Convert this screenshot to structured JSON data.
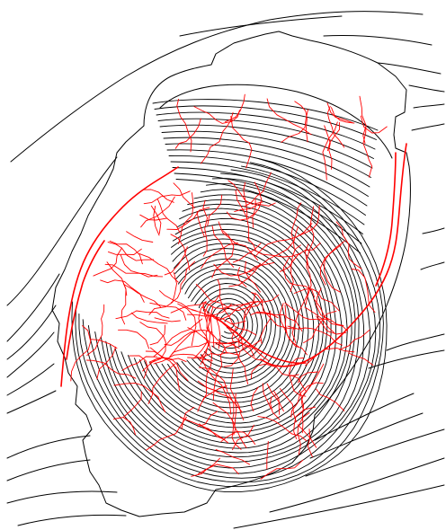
{
  "diagram": {
    "kind": "topographic-contour-with-drainage-network",
    "background_color": "#ffffff",
    "contour_color": "#000000",
    "drainage_color": "#ff0000",
    "text_labels": []
  }
}
